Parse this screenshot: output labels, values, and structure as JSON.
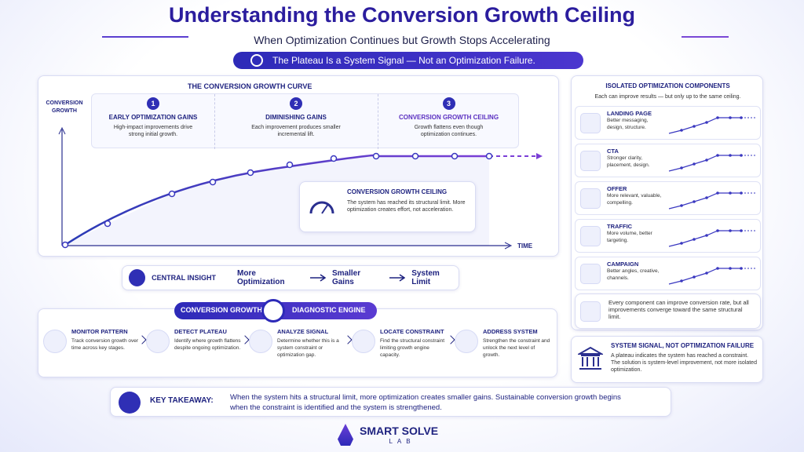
{
  "header": {
    "title": "Understanding the Conversion Growth Ceiling",
    "subtitle": "When Optimization Continues but Growth Stops Accelerating",
    "banner": "The Plateau Is a System Signal — Not an Optimization Failure."
  },
  "curve": {
    "title": "THE CONVERSION GROWTH CURVE",
    "y_label": "CONVERSION GROWTH",
    "x_label": "TIME",
    "stages": [
      {
        "number": "1",
        "title": "EARLY OPTIMIZATION GAINS",
        "text": "High-impact improvements drive strong initial growth."
      },
      {
        "number": "2",
        "title": "DIMINISHING GAINS",
        "text": "Each improvement produces smaller incremental lift."
      },
      {
        "number": "3",
        "title": "CONVERSION GROWTH CEILING",
        "text": "Growth flattens even though optimization continues."
      }
    ],
    "callout": {
      "title": "CONVERSION GROWTH CEILING",
      "text": "The system has reached its structural limit. More optimization creates effort, not acceleration."
    }
  },
  "insight": {
    "label": "CENTRAL INSIGHT",
    "steps": [
      "More Optimization",
      "Smaller Gains",
      "System Limit"
    ]
  },
  "engine": {
    "title_left": "CONVERSION GROWTH",
    "title_right": "DIAGNOSTIC ENGINE",
    "steps": [
      {
        "title": "MONITOR PATTERN",
        "text": "Track conversion growth over time across key stages."
      },
      {
        "title": "DETECT PLATEAU",
        "text": "Identify where growth flattens despite ongoing optimization."
      },
      {
        "title": "ANALYZE SIGNAL",
        "text": "Determine whether this is a system constraint or optimization gap."
      },
      {
        "title": "LOCATE CONSTRAINT",
        "text": "Find the structural constraint limiting growth engine capacity."
      },
      {
        "title": "ADDRESS SYSTEM",
        "text": "Strengthen the constraint and unlock the next level of growth."
      }
    ]
  },
  "takeaway": {
    "label": "KEY TAKEAWAY:",
    "text": "When the system hits a structural limit, more optimization creates smaller gains. Sustainable conversion growth begins when the constraint is identified and the system is strengthened."
  },
  "logo": {
    "name": "SMART SOLVE",
    "sub": "LAB"
  },
  "components": {
    "title": "ISOLATED OPTIMIZATION COMPONENTS",
    "subtitle": "Each can improve results — but only up to the same ceiling.",
    "items": [
      {
        "title": "LANDING PAGE",
        "text": "Better messaging, design, structure."
      },
      {
        "title": "CTA",
        "text": "Stronger clarity, placement, design."
      },
      {
        "title": "OFFER",
        "text": "More relevant, valuable, compelling."
      },
      {
        "title": "TRAFFIC",
        "text": "More volume, better targeting."
      },
      {
        "title": "CAMPAIGN",
        "text": "Better angles, creative, channels."
      }
    ],
    "note": "Every component can improve conversion rate, but all improvements converge toward the same structural limit."
  },
  "signal": {
    "title": "SYSTEM SIGNAL, NOT OPTIMIZATION FAILURE",
    "text": "A plateau indicates the system has reached a constraint. The solution is system-level improvement, not more isolated optimization."
  }
}
